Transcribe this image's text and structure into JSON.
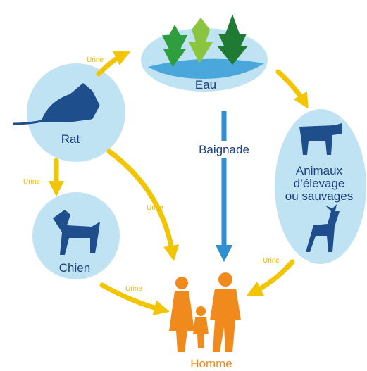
{
  "nodes": [
    {
      "label": "Eau"
    },
    {
      "label": "Rat"
    },
    {
      "label": "Chien"
    },
    {
      "label_lines": [
        "Animaux",
        "d’élevage",
        "ou sauvages"
      ]
    },
    {
      "label": "Homme"
    }
  ],
  "edges": [
    {
      "label": "Urine"
    },
    {
      "label": "Urine"
    },
    {
      "label": "Urine"
    },
    {
      "label": "Urine"
    },
    {
      "label": "Urine"
    },
    {
      "label": "Baignade"
    }
  ]
}
